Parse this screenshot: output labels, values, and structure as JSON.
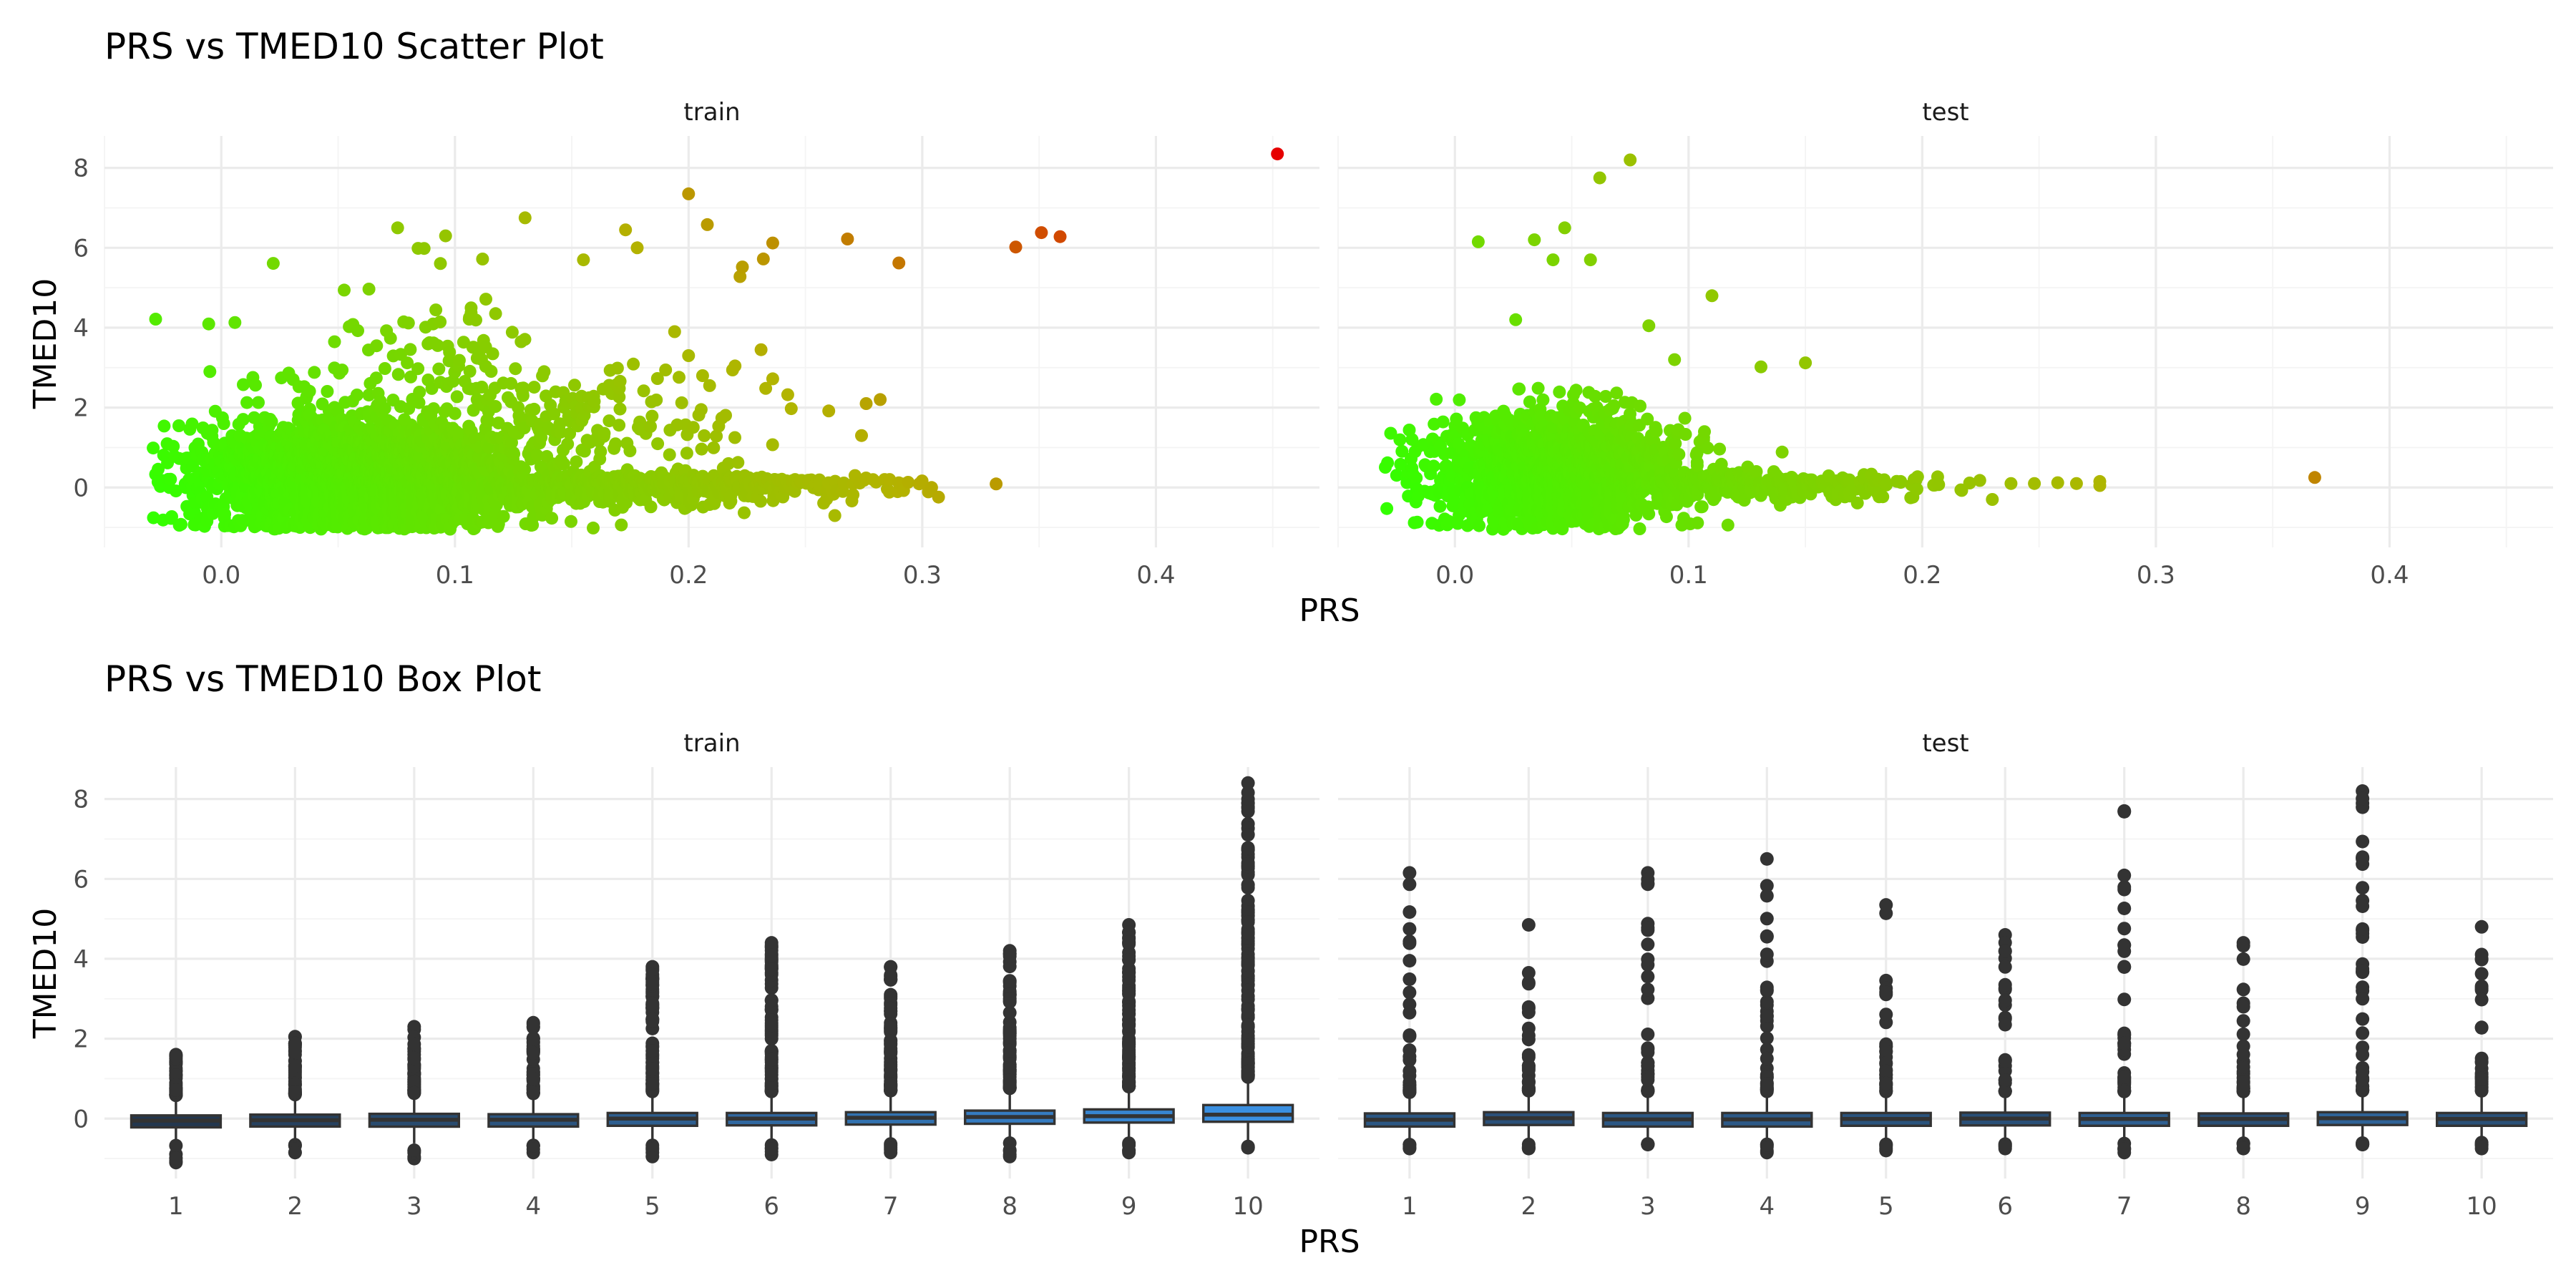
{
  "chart_data": [
    {
      "type": "scatter",
      "title": "PRS vs TMED10 Scatter Plot",
      "xlabel": "PRS",
      "ylabel": "TMED10",
      "xlim": [
        -0.05,
        0.47
      ],
      "ylim": [
        -1.5,
        8.8
      ],
      "x_ticks": [
        0.0,
        0.1,
        0.2,
        0.3,
        0.4
      ],
      "x_tick_labels": [
        "0.0",
        "0.1",
        "0.2",
        "0.3",
        "0.4"
      ],
      "y_ticks": [
        0,
        2,
        4,
        6,
        8
      ],
      "y_tick_labels": [
        "0",
        "2",
        "4",
        "6",
        "8"
      ],
      "grid": true,
      "color_scale": {
        "low": "#33ff00",
        "mid": "#b3b300",
        "high": "#e60000"
      },
      "facets": [
        {
          "name": "train",
          "highlighted_points": [
            {
              "x": 0.452,
              "y": 8.35
            },
            {
              "x": 0.359,
              "y": 6.28
            },
            {
              "x": 0.351,
              "y": 6.38
            },
            {
              "x": 0.34,
              "y": 6.02
            },
            {
              "x": 0.304,
              "y": 0.0
            },
            {
              "x": 0.29,
              "y": 5.62
            },
            {
              "x": 0.286,
              "y": 0.2
            },
            {
              "x": 0.282,
              "y": 2.2
            },
            {
              "x": 0.276,
              "y": 2.1
            },
            {
              "x": 0.274,
              "y": 1.3
            },
            {
              "x": 0.268,
              "y": 6.22
            },
            {
              "x": 0.266,
              "y": -0.1
            },
            {
              "x": 0.236,
              "y": 6.12
            },
            {
              "x": 0.232,
              "y": 5.72
            },
            {
              "x": 0.236,
              "y": 2.72
            },
            {
              "x": 0.233,
              "y": 2.48
            },
            {
              "x": 0.231,
              "y": 3.45
            },
            {
              "x": 0.223,
              "y": 5.52
            },
            {
              "x": 0.222,
              "y": 5.28
            },
            {
              "x": 0.208,
              "y": 6.58
            },
            {
              "x": 0.2,
              "y": 7.35
            },
            {
              "x": 0.206,
              "y": 2.8
            },
            {
              "x": 0.209,
              "y": 2.55
            },
            {
              "x": 0.194,
              "y": 3.9
            },
            {
              "x": 0.2,
              "y": 3.3
            },
            {
              "x": 0.13,
              "y": 6.75
            },
            {
              "x": 0.096,
              "y": 6.3
            },
            {
              "x": 0.173,
              "y": 6.45
            },
            {
              "x": 0.155,
              "y": 5.7
            },
            {
              "x": 0.178,
              "y": 6.0
            }
          ],
          "clusters": [
            {
              "x_mean": 0.06,
              "x_sd": 0.035,
              "y_mean": 0.3,
              "y_sd": 0.7,
              "n": 2400
            },
            {
              "x_mean": 0.18,
              "x_sd": 0.05,
              "y_mean": 0.05,
              "y_sd": 0.22,
              "n": 650
            },
            {
              "x_mean": 0.12,
              "x_sd": 0.05,
              "y_mean": 2.6,
              "y_sd": 1.3,
              "n": 320
            }
          ]
        },
        {
          "name": "test",
          "highlighted_points": [
            {
              "x": 0.368,
              "y": 0.25
            },
            {
              "x": 0.276,
              "y": 0.15
            },
            {
              "x": 0.276,
              "y": 0.05
            },
            {
              "x": 0.266,
              "y": 0.1
            },
            {
              "x": 0.258,
              "y": 0.12
            },
            {
              "x": 0.248,
              "y": 0.1
            },
            {
              "x": 0.238,
              "y": 0.1
            },
            {
              "x": 0.23,
              "y": -0.3
            },
            {
              "x": 0.075,
              "y": 8.2
            },
            {
              "x": 0.062,
              "y": 7.75
            },
            {
              "x": 0.01,
              "y": 6.15
            },
            {
              "x": 0.047,
              "y": 6.5
            },
            {
              "x": 0.034,
              "y": 6.2
            },
            {
              "x": 0.042,
              "y": 5.7
            },
            {
              "x": 0.058,
              "y": 5.7
            },
            {
              "x": 0.11,
              "y": 4.8
            },
            {
              "x": 0.15,
              "y": 3.12
            },
            {
              "x": 0.131,
              "y": 3.02
            },
            {
              "x": 0.026,
              "y": 4.2
            },
            {
              "x": 0.083,
              "y": 4.05
            },
            {
              "x": 0.094,
              "y": 3.2
            }
          ],
          "clusters": [
            {
              "x_mean": 0.045,
              "x_sd": 0.028,
              "y_mean": 0.4,
              "y_sd": 0.75,
              "n": 1300
            },
            {
              "x_mean": 0.12,
              "x_sd": 0.045,
              "y_mean": 0.05,
              "y_sd": 0.2,
              "n": 420
            }
          ]
        }
      ]
    },
    {
      "type": "box",
      "title": "PRS vs TMED10 Box Plot",
      "xlabel": "PRS",
      "ylabel": "TMED10",
      "categories": [
        "1",
        "2",
        "3",
        "4",
        "5",
        "6",
        "7",
        "8",
        "9",
        "10"
      ],
      "ylim": [
        -1.5,
        8.8
      ],
      "y_ticks": [
        0,
        2,
        4,
        6,
        8
      ],
      "y_tick_labels": [
        "0",
        "2",
        "4",
        "6",
        "8"
      ],
      "grid": true,
      "box_fill_low": "#23374f",
      "box_fill_high": "#3a8fe0",
      "facets": [
        {
          "name": "train",
          "boxes": [
            {
              "q1": -0.22,
              "median": -0.05,
              "q3": 0.08,
              "whisker_low": -0.62,
              "whisker_high": 0.5,
              "outliers_high_max": 1.6,
              "outliers_low_min": -1.1
            },
            {
              "q1": -0.2,
              "median": -0.04,
              "q3": 0.1,
              "whisker_low": -0.6,
              "whisker_high": 0.52,
              "outliers_high_max": 2.05,
              "outliers_low_min": -0.85
            },
            {
              "q1": -0.2,
              "median": -0.03,
              "q3": 0.12,
              "whisker_low": -0.62,
              "whisker_high": 0.55,
              "outliers_high_max": 2.3,
              "outliers_low_min": -1.0
            },
            {
              "q1": -0.2,
              "median": -0.03,
              "q3": 0.11,
              "whisker_low": -0.6,
              "whisker_high": 0.55,
              "outliers_high_max": 2.4,
              "outliers_low_min": -0.85
            },
            {
              "q1": -0.18,
              "median": 0.0,
              "q3": 0.14,
              "whisker_low": -0.6,
              "whisker_high": 0.6,
              "outliers_high_max": 3.8,
              "outliers_low_min": -0.95
            },
            {
              "q1": -0.17,
              "median": 0.0,
              "q3": 0.14,
              "whisker_low": -0.6,
              "whisker_high": 0.6,
              "outliers_high_max": 4.4,
              "outliers_low_min": -0.9
            },
            {
              "q1": -0.15,
              "median": 0.02,
              "q3": 0.16,
              "whisker_low": -0.58,
              "whisker_high": 0.62,
              "outliers_high_max": 3.8,
              "outliers_low_min": -0.85
            },
            {
              "q1": -0.13,
              "median": 0.04,
              "q3": 0.2,
              "whisker_low": -0.56,
              "whisker_high": 0.68,
              "outliers_high_max": 4.2,
              "outliers_low_min": -0.95
            },
            {
              "q1": -0.1,
              "median": 0.06,
              "q3": 0.23,
              "whisker_low": -0.55,
              "whisker_high": 0.72,
              "outliers_high_max": 4.85,
              "outliers_low_min": -0.85
            },
            {
              "q1": -0.08,
              "median": 0.1,
              "q3": 0.34,
              "whisker_low": -0.7,
              "whisker_high": 0.95,
              "outliers_high_max": 8.4,
              "outliers_low_min": -0.7
            }
          ]
        },
        {
          "name": "test",
          "boxes": [
            {
              "q1": -0.2,
              "median": -0.03,
              "q3": 0.13,
              "whisker_low": -0.58,
              "whisker_high": 0.58,
              "outliers_high_max": 6.15,
              "outliers_low_min": -0.75
            },
            {
              "q1": -0.16,
              "median": 0.01,
              "q3": 0.16,
              "whisker_low": -0.58,
              "whisker_high": 0.62,
              "outliers_high_max": 4.85,
              "outliers_low_min": -0.75
            },
            {
              "q1": -0.2,
              "median": -0.02,
              "q3": 0.14,
              "whisker_low": -0.58,
              "whisker_high": 0.6,
              "outliers_high_max": 6.15,
              "outliers_low_min": -0.65
            },
            {
              "q1": -0.2,
              "median": -0.02,
              "q3": 0.14,
              "whisker_low": -0.58,
              "whisker_high": 0.6,
              "outliers_high_max": 6.5,
              "outliers_low_min": -0.85
            },
            {
              "q1": -0.18,
              "median": -0.01,
              "q3": 0.14,
              "whisker_low": -0.55,
              "whisker_high": 0.6,
              "outliers_high_max": 5.35,
              "outliers_low_min": -0.8
            },
            {
              "q1": -0.17,
              "median": 0.0,
              "q3": 0.15,
              "whisker_low": -0.55,
              "whisker_high": 0.6,
              "outliers_high_max": 4.6,
              "outliers_low_min": -0.75
            },
            {
              "q1": -0.18,
              "median": -0.01,
              "q3": 0.14,
              "whisker_low": -0.55,
              "whisker_high": 0.6,
              "outliers_high_max": 7.7,
              "outliers_low_min": -0.85
            },
            {
              "q1": -0.18,
              "median": -0.01,
              "q3": 0.13,
              "whisker_low": -0.55,
              "whisker_high": 0.6,
              "outliers_high_max": 4.4,
              "outliers_low_min": -0.75
            },
            {
              "q1": -0.16,
              "median": 0.01,
              "q3": 0.16,
              "whisker_low": -0.55,
              "whisker_high": 0.62,
              "outliers_high_max": 8.2,
              "outliers_low_min": -0.65
            },
            {
              "q1": -0.18,
              "median": -0.01,
              "q3": 0.14,
              "whisker_low": -0.55,
              "whisker_high": 0.6,
              "outliers_high_max": 4.8,
              "outliers_low_min": -0.75
            }
          ]
        }
      ]
    }
  ]
}
